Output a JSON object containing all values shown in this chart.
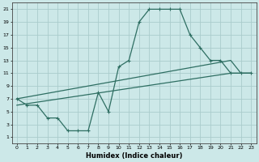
{
  "xlabel": "Humidex (Indice chaleur)",
  "bg_color": "#cce8e8",
  "line_color": "#2e6e62",
  "grid_color": "#aacccc",
  "xlim": [
    -0.5,
    23.5
  ],
  "ylim": [
    0,
    22
  ],
  "xticks": [
    0,
    1,
    2,
    3,
    4,
    5,
    6,
    7,
    8,
    9,
    10,
    11,
    12,
    13,
    14,
    15,
    16,
    17,
    18,
    19,
    20,
    21,
    22,
    23
  ],
  "yticks": [
    1,
    3,
    5,
    7,
    9,
    11,
    13,
    15,
    17,
    19,
    21
  ],
  "line1_x": [
    0,
    1,
    2,
    3,
    4,
    5,
    6,
    7,
    8,
    9,
    10,
    11,
    12,
    13,
    14,
    15,
    16,
    17,
    18,
    19,
    20,
    21,
    22,
    23
  ],
  "line1_y": [
    7,
    6,
    6,
    4,
    4,
    2,
    2,
    2,
    8,
    5,
    12,
    13,
    19,
    21,
    21,
    21,
    21,
    17,
    15,
    13,
    13,
    11,
    11,
    11
  ],
  "line2_x": [
    0,
    21,
    22,
    23
  ],
  "line2_y": [
    7,
    13,
    11,
    11
  ],
  "line3_x": [
    0,
    21,
    22,
    23
  ],
  "line3_y": [
    6,
    11,
    11,
    11
  ],
  "marker_size": 2.5,
  "line_width": 0.9
}
